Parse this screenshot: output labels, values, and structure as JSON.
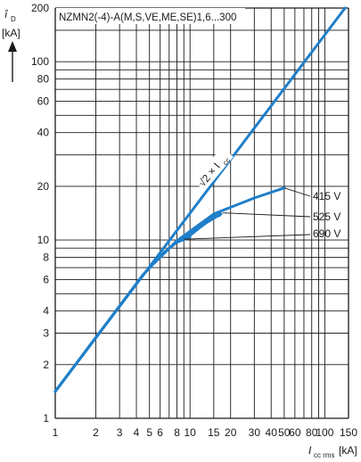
{
  "chart_data": {
    "type": "line",
    "title": "NZMN2(-4)-A(M,S,VE,ME,SE)1,6...300",
    "y_label": {
      "symbol": "î",
      "sub": "D",
      "unit": "[kA]"
    },
    "x_label": {
      "symbol": "I",
      "sub": "cc rms",
      "unit": "[kA]"
    },
    "x_scale": "log",
    "y_scale": "log",
    "xlim": [
      1,
      150
    ],
    "ylim": [
      1,
      200
    ],
    "grid": true,
    "x_ticks": [
      1,
      2,
      3,
      4,
      5,
      6,
      8,
      10,
      15,
      20,
      30,
      40,
      50,
      60,
      80,
      100,
      150
    ],
    "x_tick_labels": [
      "1",
      "2",
      "3",
      "4",
      "5",
      "6",
      "8",
      "10",
      "15",
      "20",
      "30",
      "40",
      "50",
      "60",
      "80",
      "100",
      "150"
    ],
    "y_ticks": [
      1,
      2,
      3,
      4,
      6,
      8,
      10,
      20,
      40,
      60,
      80,
      100,
      200
    ],
    "y_tick_labels": [
      "1",
      "2",
      "3",
      "4",
      "6",
      "8",
      "10",
      "20",
      "40",
      "60",
      "80",
      "100",
      "200"
    ],
    "reference_line": {
      "label": "√2 × I",
      "label_sub": "cc",
      "factor": 1.414
    },
    "series": [
      {
        "name": "415 V",
        "x": [
          1,
          4.5,
          5.2,
          8,
          15,
          30,
          50
        ],
        "y": [
          1.414,
          6.4,
          7.2,
          9.9,
          14,
          17.2,
          19.6
        ]
      },
      {
        "name": "525 V",
        "x": [
          1,
          4.5,
          5.2,
          8,
          12,
          17
        ],
        "y": [
          1.414,
          6.4,
          7.2,
          9.9,
          12,
          14
        ]
      },
      {
        "name": "690 V",
        "x": [
          1,
          4.5,
          5.2,
          6.5,
          8,
          10
        ],
        "y": [
          1.414,
          6.4,
          7.2,
          8.6,
          9.7,
          10.4
        ]
      }
    ],
    "colors": {
      "curve": "#1f7fc9",
      "grid": "#1a1a1a",
      "text": "#1a1a1a"
    }
  }
}
